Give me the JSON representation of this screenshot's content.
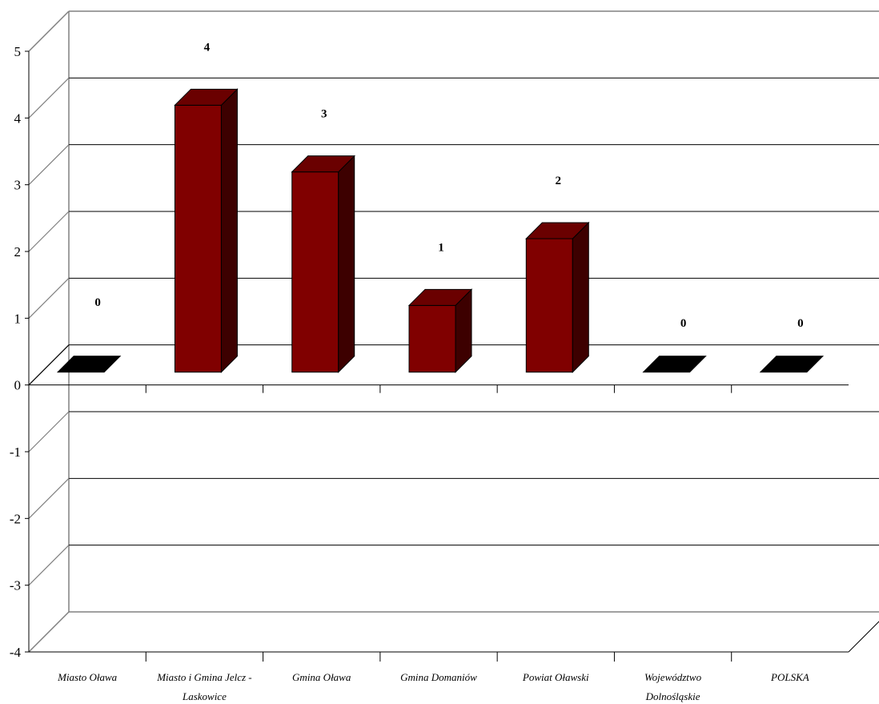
{
  "chart_data": {
    "type": "bar",
    "categories": [
      [
        "Miasto Oława"
      ],
      [
        "Miasto i Gmina Jelcz -",
        "Laskowice"
      ],
      [
        "Gmina Oława"
      ],
      [
        "Gmina Domaniów"
      ],
      [
        "Powiat Oławski"
      ],
      [
        "Województwo",
        "Dolnośląskie"
      ],
      [
        "POLSKA"
      ]
    ],
    "values": [
      0,
      4,
      3,
      1,
      2,
      0,
      0
    ],
    "data_labels": [
      "0",
      "4",
      "3",
      "1",
      "2",
      "0",
      "0"
    ],
    "ylim": [
      -4,
      5
    ],
    "yticks": [
      "-4",
      "-3",
      "-2",
      "-1",
      "0",
      "1",
      "2",
      "3",
      "4",
      "5"
    ],
    "grid": true,
    "three_d": true,
    "colors": {
      "bar_front": "#800000",
      "bar_top": "#6a0000",
      "bar_side": "#3d0000",
      "zero_bar": "#000000",
      "grid": "#000000",
      "wall": "#808080"
    }
  }
}
